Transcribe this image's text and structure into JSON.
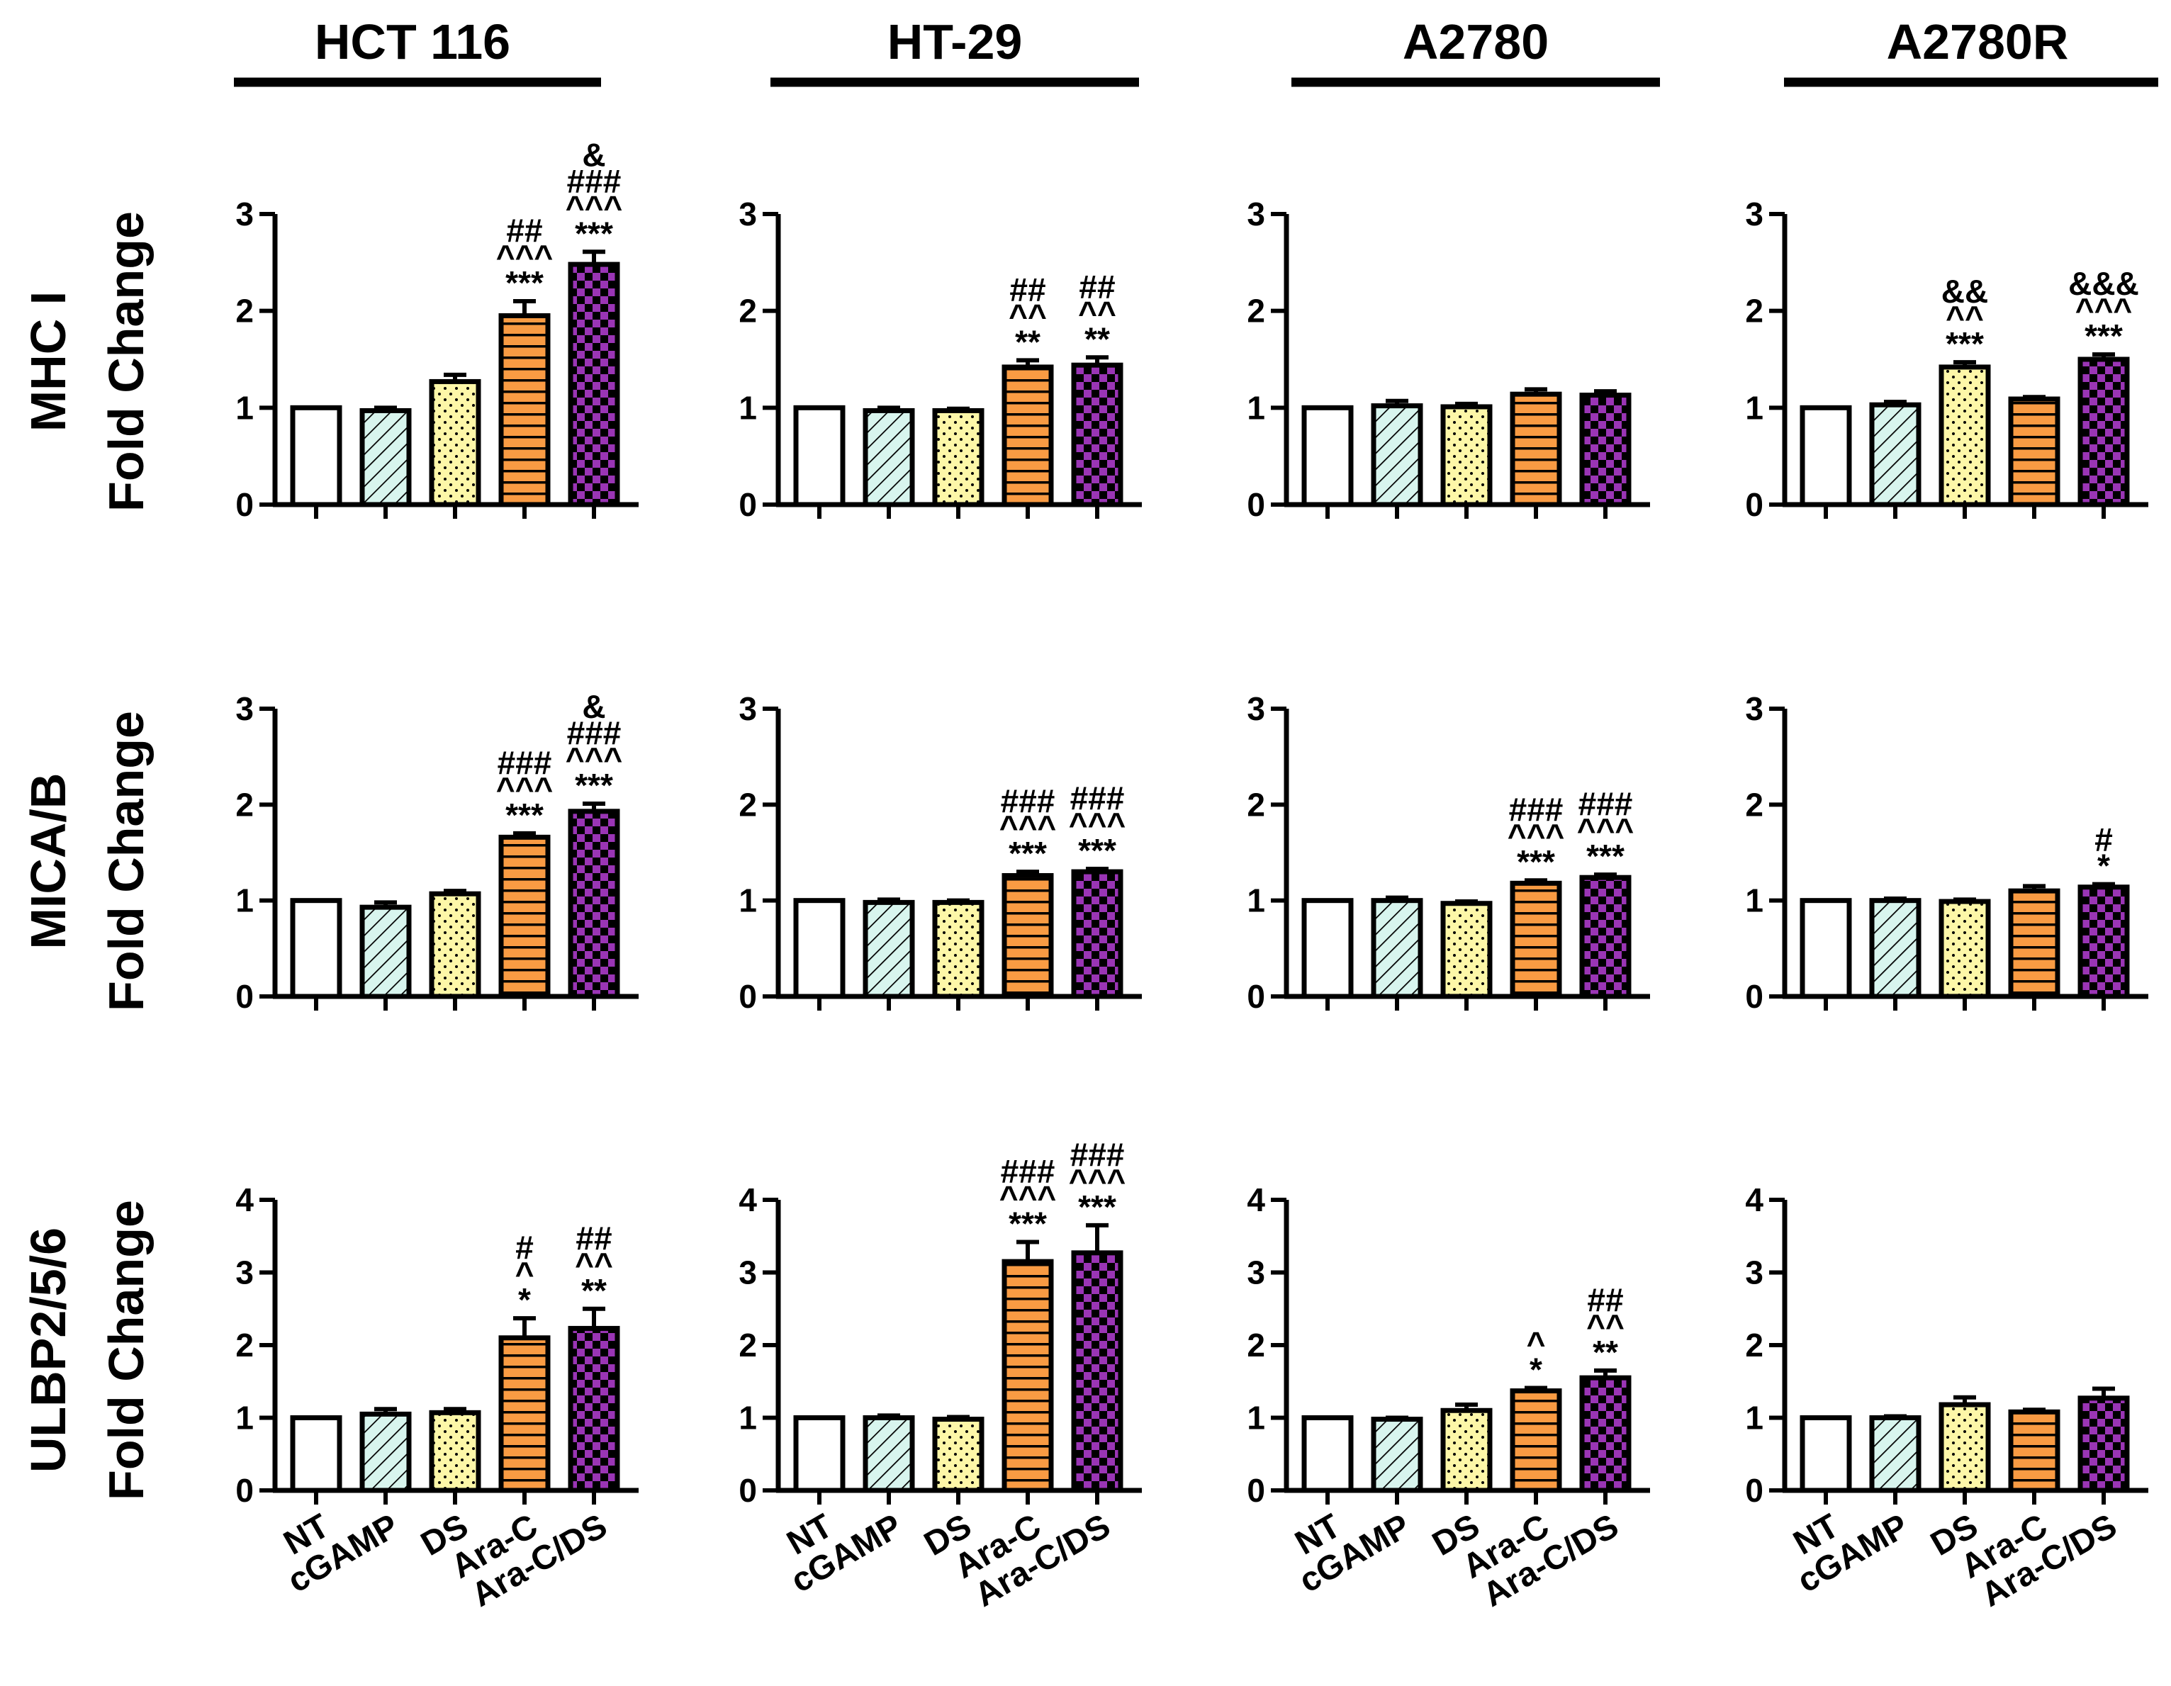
{
  "columns": [
    "HCT 116",
    "HT-29",
    "A2780",
    "A2780R"
  ],
  "rows": [
    {
      "label_line1": "MHC I",
      "label_line2": "Fold Change"
    },
    {
      "label_line1": "MICA/B",
      "label_line2": "Fold Change"
    },
    {
      "label_line1": "ULBP2/5/6",
      "label_line2": "Fold Change"
    }
  ],
  "categories": [
    "NT",
    "cGAMP",
    "DS",
    "Ara-C",
    "Ara-C/DS"
  ],
  "colors": {
    "NT": "#ffffff",
    "cGAMP": "#d8f5ee",
    "DS": "#fdf7a8",
    "Ara-C": "#f99b43",
    "Ara-C/DS": "#9a35b5",
    "axis": "#000000"
  },
  "chart_data": [
    {
      "type": "bar",
      "column": "HCT 116",
      "row": "MHC I",
      "ylabel": "MHC I Fold Change",
      "ylim": [
        0,
        3
      ],
      "yticks": [
        0,
        1,
        2,
        3
      ],
      "categories": [
        "NT",
        "cGAMP",
        "DS",
        "Ara-C",
        "Ara-C/DS"
      ],
      "values": [
        1.0,
        0.97,
        1.27,
        1.95,
        2.48
      ],
      "errors": [
        0,
        0.03,
        0.07,
        0.15,
        0.13
      ],
      "annotations": [
        [],
        [],
        [],
        [
          "##",
          "^^^",
          "***"
        ],
        [
          "&",
          "###",
          "^^^",
          "***"
        ]
      ]
    },
    {
      "type": "bar",
      "column": "HT-29",
      "row": "MHC I",
      "ylabel": "MHC I Fold Change",
      "ylim": [
        0,
        3
      ],
      "yticks": [
        0,
        1,
        2,
        3
      ],
      "categories": [
        "NT",
        "cGAMP",
        "DS",
        "Ara-C",
        "Ara-C/DS"
      ],
      "values": [
        1.0,
        0.97,
        0.97,
        1.42,
        1.44
      ],
      "errors": [
        0,
        0.03,
        0.02,
        0.07,
        0.08
      ],
      "annotations": [
        [],
        [],
        [],
        [
          "##",
          "^^",
          "**"
        ],
        [
          "##",
          "^^",
          "**"
        ]
      ]
    },
    {
      "type": "bar",
      "column": "A2780",
      "row": "MHC I",
      "ylabel": "MHC I Fold Change",
      "ylim": [
        0,
        3
      ],
      "yticks": [
        0,
        1,
        2,
        3
      ],
      "categories": [
        "NT",
        "cGAMP",
        "DS",
        "Ara-C",
        "Ara-C/DS"
      ],
      "values": [
        1.0,
        1.02,
        1.01,
        1.14,
        1.13
      ],
      "errors": [
        0,
        0.05,
        0.03,
        0.05,
        0.04
      ],
      "annotations": [
        [],
        [],
        [],
        [],
        []
      ]
    },
    {
      "type": "bar",
      "column": "A2780R",
      "row": "MHC I",
      "ylabel": "MHC I Fold Change",
      "ylim": [
        0,
        3
      ],
      "yticks": [
        0,
        1,
        2,
        3
      ],
      "categories": [
        "NT",
        "cGAMP",
        "DS",
        "Ara-C",
        "Ara-C/DS"
      ],
      "values": [
        1.0,
        1.03,
        1.42,
        1.09,
        1.5
      ],
      "errors": [
        0,
        0.03,
        0.05,
        0.02,
        0.05
      ],
      "annotations": [
        [],
        [],
        [
          "&&",
          "^^",
          "***"
        ],
        [],
        [
          "&&&",
          "^^^",
          "***"
        ]
      ]
    },
    {
      "type": "bar",
      "column": "HCT 116",
      "row": "MICA/B",
      "ylabel": "MICA/B Fold Change",
      "ylim": [
        0,
        3
      ],
      "yticks": [
        0,
        1,
        2,
        3
      ],
      "categories": [
        "NT",
        "cGAMP",
        "DS",
        "Ara-C",
        "Ara-C/DS"
      ],
      "values": [
        1.0,
        0.93,
        1.07,
        1.66,
        1.93
      ],
      "errors": [
        0,
        0.05,
        0.03,
        0.04,
        0.08
      ],
      "annotations": [
        [],
        [],
        [],
        [
          "###",
          "^^^",
          "***"
        ],
        [
          "&",
          "###",
          "^^^",
          "***"
        ]
      ]
    },
    {
      "type": "bar",
      "column": "HT-29",
      "row": "MICA/B",
      "ylabel": "MICA/B Fold Change",
      "ylim": [
        0,
        3
      ],
      "yticks": [
        0,
        1,
        2,
        3
      ],
      "categories": [
        "NT",
        "cGAMP",
        "DS",
        "Ara-C",
        "Ara-C/DS"
      ],
      "values": [
        1.0,
        0.98,
        0.98,
        1.26,
        1.3
      ],
      "errors": [
        0,
        0.03,
        0.02,
        0.04,
        0.03
      ],
      "annotations": [
        [],
        [],
        [],
        [
          "###",
          "^^^",
          "***"
        ],
        [
          "###",
          "^^^",
          "***"
        ]
      ]
    },
    {
      "type": "bar",
      "column": "A2780",
      "row": "MICA/B",
      "ylabel": "MICA/B Fold Change",
      "ylim": [
        0,
        3
      ],
      "yticks": [
        0,
        1,
        2,
        3
      ],
      "categories": [
        "NT",
        "cGAMP",
        "DS",
        "Ara-C",
        "Ara-C/DS"
      ],
      "values": [
        1.0,
        1.0,
        0.97,
        1.18,
        1.24
      ],
      "errors": [
        0,
        0.03,
        0.02,
        0.03,
        0.03
      ],
      "annotations": [
        [],
        [],
        [],
        [
          "###",
          "^^^",
          "***"
        ],
        [
          "###",
          "^^^",
          "***"
        ]
      ]
    },
    {
      "type": "bar",
      "column": "A2780R",
      "row": "MICA/B",
      "ylabel": "MICA/B Fold Change",
      "ylim": [
        0,
        3
      ],
      "yticks": [
        0,
        1,
        2,
        3
      ],
      "categories": [
        "NT",
        "cGAMP",
        "DS",
        "Ara-C",
        "Ara-C/DS"
      ],
      "values": [
        1.0,
        1.0,
        0.99,
        1.1,
        1.14
      ],
      "errors": [
        0,
        0.02,
        0.02,
        0.05,
        0.03
      ],
      "annotations": [
        [],
        [],
        [],
        [],
        [
          "#",
          "*"
        ]
      ]
    },
    {
      "type": "bar",
      "column": "HCT 116",
      "row": "ULBP2/5/6",
      "ylabel": "ULBP2/5/6 Fold Change",
      "ylim": [
        0,
        4
      ],
      "yticks": [
        0,
        1,
        2,
        3,
        4
      ],
      "categories": [
        "NT",
        "cGAMP",
        "DS",
        "Ara-C",
        "Ara-C/DS"
      ],
      "values": [
        1.0,
        1.05,
        1.07,
        2.1,
        2.23
      ],
      "errors": [
        0,
        0.07,
        0.05,
        0.27,
        0.27
      ],
      "annotations": [
        [],
        [],
        [],
        [
          "#",
          "^",
          "*"
        ],
        [
          "##",
          "^^",
          "**"
        ]
      ]
    },
    {
      "type": "bar",
      "column": "HT-29",
      "row": "ULBP2/5/6",
      "ylabel": "ULBP2/5/6 Fold Change",
      "ylim": [
        0,
        4
      ],
      "yticks": [
        0,
        1,
        2,
        3,
        4
      ],
      "categories": [
        "NT",
        "cGAMP",
        "DS",
        "Ara-C",
        "Ara-C/DS"
      ],
      "values": [
        1.0,
        1.0,
        0.98,
        3.15,
        3.27
      ],
      "errors": [
        0,
        0.03,
        0.03,
        0.27,
        0.38
      ],
      "annotations": [
        [],
        [],
        [],
        [
          "###",
          "^^^",
          "***"
        ],
        [
          "###",
          "^^^",
          "***"
        ]
      ]
    },
    {
      "type": "bar",
      "column": "A2780",
      "row": "ULBP2/5/6",
      "ylabel": "ULBP2/5/6 Fold Change",
      "ylim": [
        0,
        4
      ],
      "yticks": [
        0,
        1,
        2,
        3,
        4
      ],
      "categories": [
        "NT",
        "cGAMP",
        "DS",
        "Ara-C",
        "Ara-C/DS"
      ],
      "values": [
        1.0,
        0.98,
        1.1,
        1.37,
        1.55
      ],
      "errors": [
        0,
        0.02,
        0.08,
        0.04,
        0.1
      ],
      "annotations": [
        [],
        [],
        [],
        [
          "^",
          "*"
        ],
        [
          "##",
          "^^",
          "**"
        ]
      ]
    },
    {
      "type": "bar",
      "column": "A2780R",
      "row": "ULBP2/5/6",
      "ylabel": "ULBP2/5/6 Fold Change",
      "ylim": [
        0,
        4
      ],
      "yticks": [
        0,
        1,
        2,
        3,
        4
      ],
      "categories": [
        "NT",
        "cGAMP",
        "DS",
        "Ara-C",
        "Ara-C/DS"
      ],
      "values": [
        1.0,
        1.0,
        1.18,
        1.08,
        1.27
      ],
      "errors": [
        0,
        0.02,
        0.1,
        0.03,
        0.13
      ],
      "annotations": [
        [],
        [],
        [],
        [],
        []
      ]
    }
  ]
}
